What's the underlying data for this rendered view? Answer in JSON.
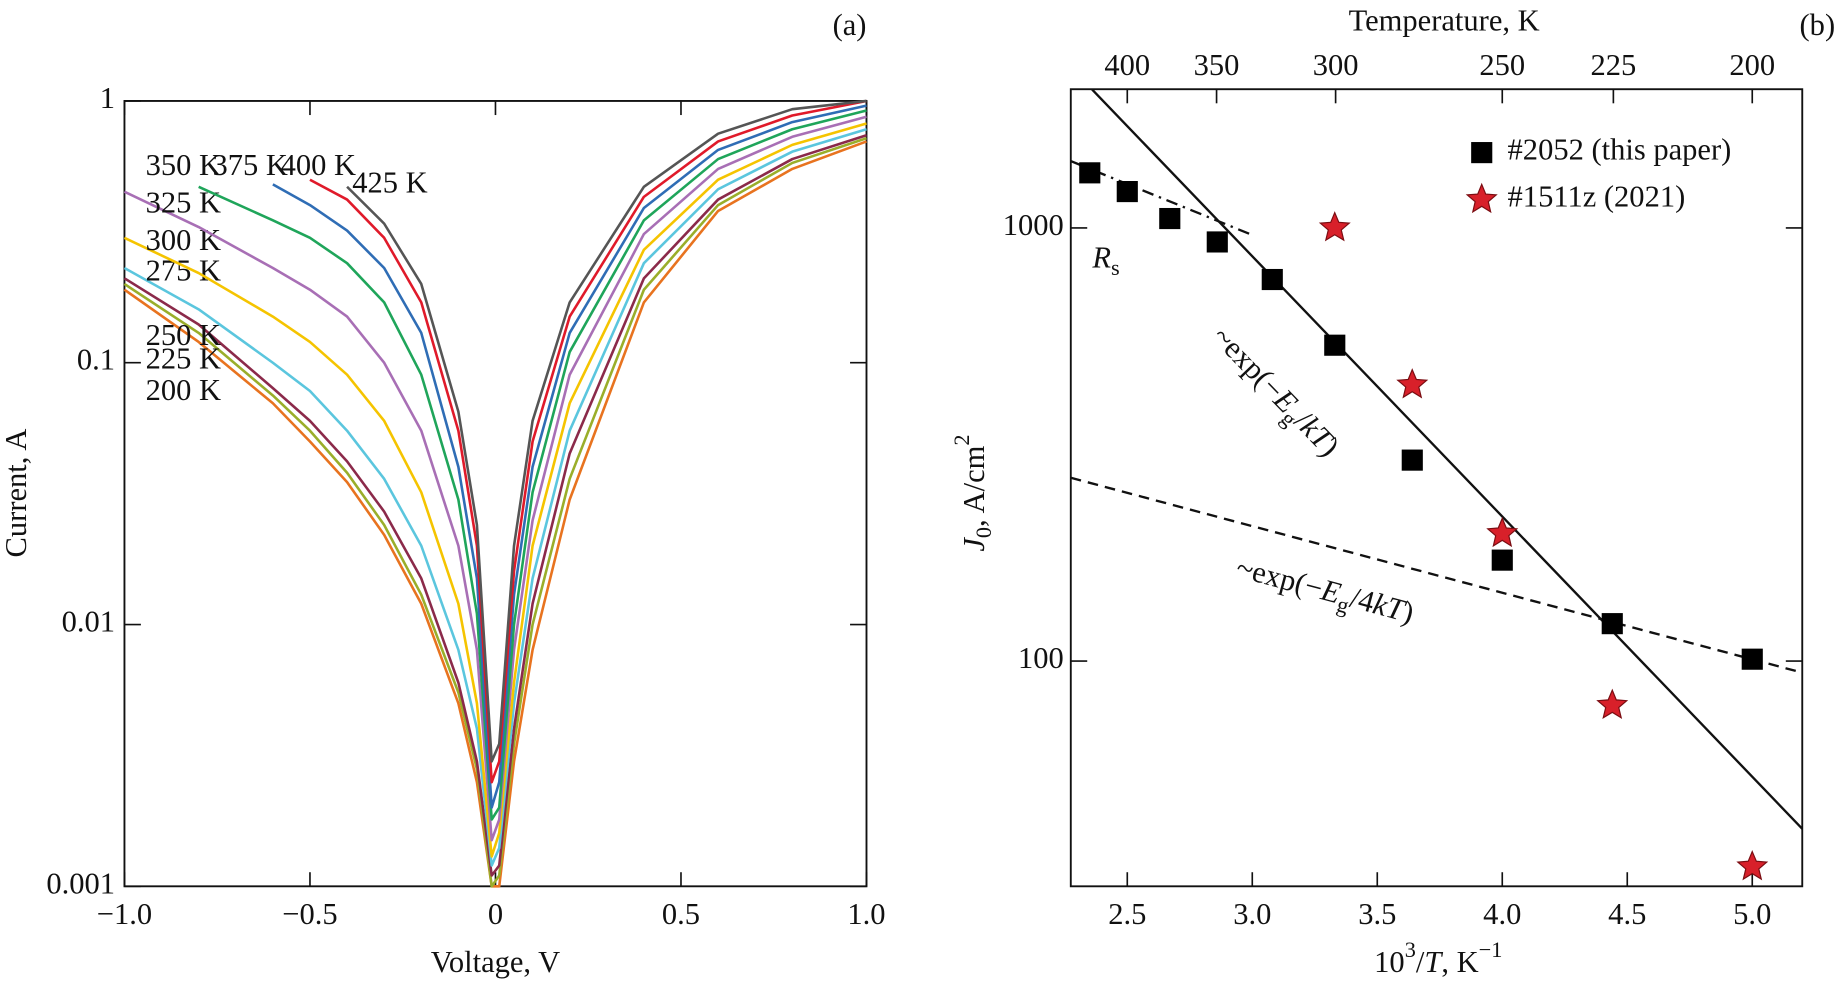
{
  "chart_data": [
    {
      "type": "line",
      "panel": "(a)",
      "xlabel": "Voltage, V",
      "ylabel": "Current, A",
      "yscale": "log",
      "x": [
        -1,
        -0.8,
        -0.6,
        -0.5,
        -0.4,
        -0.3,
        -0.2,
        -0.1,
        -0.05,
        -0.01,
        0.01,
        0.05,
        0.1,
        0.2,
        0.4,
        0.6,
        0.8,
        1.0
      ],
      "series": [
        {
          "name": "200 K",
          "color": "#e8731f",
          "values": [
            0.19,
            0.12,
            0.07,
            0.05,
            0.035,
            0.022,
            0.012,
            0.005,
            0.0025,
            0.001,
            0.001,
            0.003,
            0.008,
            0.03,
            0.17,
            0.38,
            0.55,
            0.7
          ]
        },
        {
          "name": "225 K",
          "color": "#9aae2a",
          "values": [
            0.2,
            0.13,
            0.075,
            0.055,
            0.038,
            0.024,
            0.013,
            0.0055,
            0.0028,
            0.001,
            0.0011,
            0.0035,
            0.01,
            0.036,
            0.19,
            0.4,
            0.58,
            0.72
          ]
        },
        {
          "name": "250 K",
          "color": "#8b2a4a",
          "values": [
            0.21,
            0.14,
            0.08,
            0.06,
            0.042,
            0.027,
            0.015,
            0.006,
            0.003,
            0.0011,
            0.0012,
            0.004,
            0.012,
            0.045,
            0.21,
            0.42,
            0.6,
            0.74
          ]
        },
        {
          "name": "275 K",
          "color": "#5bc6de",
          "values": [
            0.23,
            0.16,
            0.1,
            0.078,
            0.055,
            0.036,
            0.02,
            0.008,
            0.004,
            0.0012,
            0.0014,
            0.005,
            0.015,
            0.055,
            0.24,
            0.46,
            0.64,
            0.78
          ]
        },
        {
          "name": "300 K",
          "color": "#f5c400",
          "values": [
            0.3,
            0.22,
            0.15,
            0.12,
            0.09,
            0.06,
            0.032,
            0.012,
            0.005,
            0.0013,
            0.0016,
            0.006,
            0.02,
            0.07,
            0.27,
            0.5,
            0.68,
            0.82
          ]
        },
        {
          "name": "325 K",
          "color": "#a86fb5",
          "values": [
            0.45,
            0.33,
            0.23,
            0.19,
            0.15,
            0.1,
            0.055,
            0.02,
            0.008,
            0.0015,
            0.0018,
            0.008,
            0.025,
            0.09,
            0.31,
            0.55,
            0.73,
            0.87
          ]
        },
        {
          "name": "350 K",
          "color": "#1fa55a",
          "values": [
            null,
            0.47,
            0.35,
            0.3,
            0.24,
            0.17,
            0.09,
            0.03,
            0.011,
            0.0018,
            0.002,
            0.01,
            0.032,
            0.11,
            0.35,
            0.6,
            0.78,
            0.92
          ]
        },
        {
          "name": "375 K",
          "color": "#2f6db5",
          "values": [
            null,
            null,
            0.48,
            0.4,
            0.32,
            0.23,
            0.13,
            0.04,
            0.015,
            0.002,
            0.0025,
            0.013,
            0.04,
            0.13,
            0.39,
            0.65,
            0.83,
            0.96
          ]
        },
        {
          "name": "400 K",
          "color": "#e01a2a",
          "values": [
            null,
            null,
            null,
            0.5,
            0.42,
            0.3,
            0.17,
            0.055,
            0.02,
            0.0025,
            0.003,
            0.016,
            0.05,
            0.15,
            0.43,
            0.7,
            0.88,
            1.0
          ]
        },
        {
          "name": "425 K",
          "color": "#555555",
          "values": [
            null,
            null,
            null,
            null,
            0.47,
            0.34,
            0.2,
            0.065,
            0.024,
            0.003,
            0.0035,
            0.02,
            0.06,
            0.17,
            0.47,
            0.75,
            0.93,
            1.0
          ]
        }
      ],
      "xlim": [
        -1,
        1
      ],
      "ylim": [
        0.001,
        1
      ],
      "xticks": [
        {
          "value": -1,
          "label": "−1.0"
        },
        {
          "value": -0.5,
          "label": "−0.5"
        },
        0,
        0.5,
        {
          "value": 1,
          "label": "1.0"
        }
      ],
      "yticks": [
        0.001,
        0.01,
        0.1,
        1
      ]
    },
    {
      "type": "scatter",
      "panel": "(b)",
      "yscale": "log",
      "xlabel": [
        "10",
        "3",
        "/",
        "T",
        ", K",
        "−1"
      ],
      "ylabel": [
        "J",
        "0",
        ", A/cm",
        "2"
      ],
      "x2label": "Temperature, K",
      "xlim": [
        2.274,
        5.2
      ],
      "ylim": [
        30.2,
        2090
      ],
      "xticks": [
        2.5,
        {
          "value": 3,
          "label": "3.0"
        },
        3.5,
        {
          "value": 4,
          "label": "4.0"
        },
        4.5,
        {
          "value": 5,
          "label": "5.0"
        }
      ],
      "yticks": [
        100,
        1000
      ],
      "x2ticks": [
        400,
        350,
        300,
        250,
        225,
        200
      ],
      "legend": "upper right",
      "series": [
        {
          "name": "#2052 (this paper)",
          "color": "#000000",
          "marker": "square",
          "x": [
            2.35,
            2.5,
            2.67,
            2.86,
            3.08,
            3.33,
            3.64,
            4.0,
            4.44,
            5.0
          ],
          "values": [
            1340,
            1213,
            1051,
            928,
            760,
            536,
            291,
            171,
            122,
            101
          ]
        },
        {
          "name": "#1511z (2021)",
          "color": "#d8202a",
          "marker": "star",
          "x": [
            3.33,
            3.64,
            4.0,
            4.44,
            5.0
          ],
          "values": [
            1000,
            434,
            197,
            79,
            33.5
          ]
        }
      ],
      "fits": [
        {
          "style": "solid",
          "x": [
            2.359,
            5.2
          ],
          "values": [
            2088,
            41
          ]
        },
        {
          "style": "dashed",
          "x": [
            2.274,
            5.2
          ],
          "values": [
            265,
            94
          ]
        },
        {
          "style": "dashdot",
          "x": [
            2.274,
            3.0
          ],
          "values": [
            1427,
            963
          ]
        }
      ],
      "annotations": [
        {
          "parts": [
            "R",
            "s"
          ]
        },
        {
          "parts": [
            "~exp(−",
            "E",
            "g",
            "/",
            "kT",
            ")"
          ]
        },
        {
          "parts": [
            "~exp(−",
            "E",
            "g",
            "/4",
            "kT",
            ")"
          ]
        }
      ]
    }
  ]
}
